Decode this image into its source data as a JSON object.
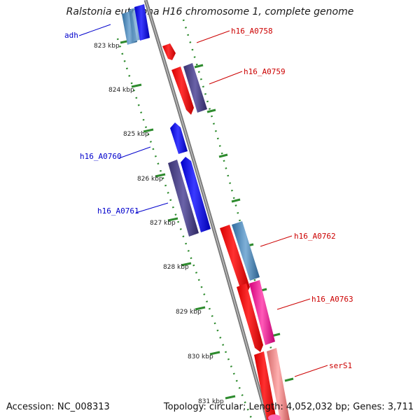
{
  "title": "Ralstonia eutropha H16 chromosome 1, complete genome",
  "footer": {
    "accession_label": "Accession:",
    "accession": "NC_008313",
    "topology": "Topology: circular",
    "length": "Length: 4,052,032 bp",
    "genes": "Genes: 3,711"
  },
  "colors": {
    "backbone": "#8a8a8a",
    "ticks": "#2e8b2e",
    "forward_cds": "#ff0000",
    "forward_label": "#cc0000",
    "reverse_cds": "#0000ff",
    "reverse_label": "#0000cc"
  },
  "ticks": [
    "823 kbp",
    "824 kbp",
    "825 kbp",
    "826 kbp",
    "827 kbp",
    "828 kbp",
    "829 kbp",
    "830 kbp",
    "831 kbp"
  ],
  "labels": {
    "adh": "adh",
    "h16_A0758": "h16_A0758",
    "h16_A0759": "h16_A0759",
    "h16_A0760": "h16_A0760",
    "h16_A0761": "h16_A0761",
    "h16_A0762": "h16_A0762",
    "h16_A0763": "h16_A0763",
    "serS1": "serS1"
  }
}
